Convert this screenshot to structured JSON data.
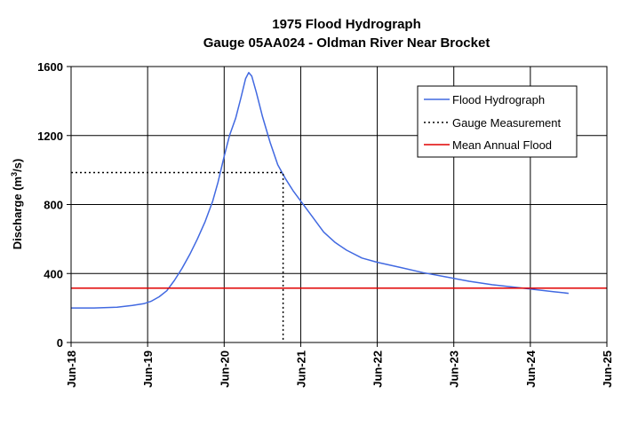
{
  "chart_data": {
    "type": "line",
    "title": "1975 Flood Hydrograph",
    "subtitle": "Gauge 05AA024 - Oldman River Near Brocket",
    "ylabel_parts": [
      "Discharge (m",
      "3",
      "/s)"
    ],
    "xlabel": "",
    "x_tick_labels": [
      "Jun-18",
      "Jun-19",
      "Jun-20",
      "Jun-21",
      "Jun-22",
      "Jun-23",
      "Jun-24",
      "Jun-25"
    ],
    "x_unit": "days from Jun-18",
    "xlim": [
      0,
      7
    ],
    "ylim": [
      0,
      1600
    ],
    "y_ticks": [
      0,
      400,
      800,
      1200,
      1600
    ],
    "grid": true,
    "legend_position": "top-right",
    "series": [
      {
        "name": "Flood Hydrograph",
        "color": "#4169e1",
        "style": "solid",
        "points": [
          [
            0,
            200
          ],
          [
            0.3,
            200
          ],
          [
            0.6,
            205
          ],
          [
            0.8,
            215
          ],
          [
            0.95,
            225
          ],
          [
            1.05,
            240
          ],
          [
            1.15,
            265
          ],
          [
            1.25,
            300
          ],
          [
            1.35,
            360
          ],
          [
            1.45,
            430
          ],
          [
            1.55,
            510
          ],
          [
            1.65,
            600
          ],
          [
            1.75,
            700
          ],
          [
            1.85,
            820
          ],
          [
            1.92,
            930
          ],
          [
            2.0,
            1080
          ],
          [
            2.07,
            1200
          ],
          [
            2.15,
            1300
          ],
          [
            2.22,
            1420
          ],
          [
            2.28,
            1530
          ],
          [
            2.32,
            1565
          ],
          [
            2.36,
            1545
          ],
          [
            2.42,
            1450
          ],
          [
            2.5,
            1310
          ],
          [
            2.6,
            1160
          ],
          [
            2.7,
            1030
          ],
          [
            2.8,
            950
          ],
          [
            2.9,
            880
          ],
          [
            3.0,
            820
          ],
          [
            3.15,
            730
          ],
          [
            3.3,
            640
          ],
          [
            3.45,
            580
          ],
          [
            3.6,
            535
          ],
          [
            3.8,
            490
          ],
          [
            4.0,
            465
          ],
          [
            4.3,
            435
          ],
          [
            4.6,
            405
          ],
          [
            4.9,
            380
          ],
          [
            5.2,
            355
          ],
          [
            5.5,
            335
          ],
          [
            5.8,
            320
          ],
          [
            6.1,
            305
          ],
          [
            6.3,
            295
          ],
          [
            6.5,
            285
          ]
        ]
      },
      {
        "name": "Gauge Measurement",
        "color": "#000000",
        "style": "dotted",
        "points": [
          [
            0,
            985
          ],
          [
            2.77,
            985
          ],
          [
            2.77,
            0
          ]
        ]
      },
      {
        "name": "Mean Annual Flood",
        "color": "#e00000",
        "style": "solid",
        "points": [
          [
            0,
            315
          ],
          [
            7,
            315
          ]
        ]
      }
    ]
  }
}
